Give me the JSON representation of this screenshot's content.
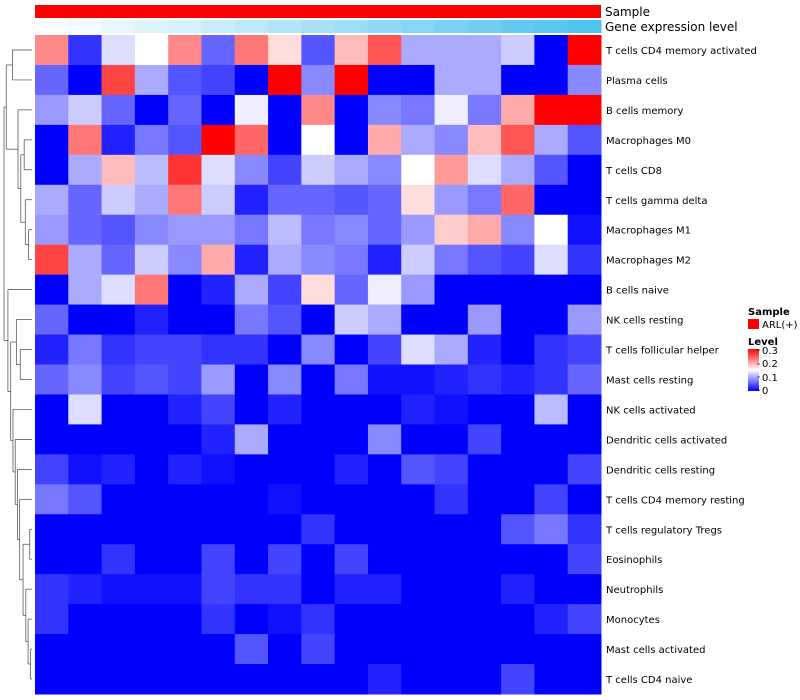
{
  "chart_data": {
    "type": "heatmap",
    "annotation_tracks": [
      {
        "name": "Sample",
        "kind": "categorical",
        "values": [
          "ARL(+)"
        ],
        "colors": {
          "ARL(+)": "#ff0000"
        }
      },
      {
        "name": "Gene expression level",
        "kind": "continuous",
        "from_color": "#ffffff",
        "to_color": "#4fc3f0"
      }
    ],
    "rows": [
      "T cells CD4 memory activated",
      "Plasma cells",
      "B cells memory",
      "Macrophages M0",
      "T cells CD8",
      "T cells gamma delta",
      "Macrophages M1",
      "Macrophages M2",
      "B cells naive",
      "NK cells resting",
      "T cells follicular helper",
      "Mast cells resting",
      "NK cells activated",
      "Dendritic cells activated",
      "Dendritic cells resting",
      "T cells CD4 memory resting",
      "T cells regulatory  Tregs",
      "Eosinophils",
      "Neutrophils",
      "Monocytes",
      "Mast cells activated",
      "T cells CD4 naive"
    ],
    "n_samples": 17,
    "values": [
      [
        0.22,
        0.03,
        0.13,
        0.15,
        0.22,
        0.06,
        0.23,
        0.17,
        0.05,
        0.19,
        0.25,
        0.1,
        0.1,
        0.1,
        0.12,
        0.0,
        0.3
      ],
      [
        0.06,
        0.0,
        0.26,
        0.1,
        0.05,
        0.04,
        0.0,
        0.3,
        0.08,
        0.3,
        0.0,
        0.0,
        0.1,
        0.1,
        0.0,
        0.0,
        0.08
      ],
      [
        0.09,
        0.12,
        0.06,
        0.0,
        0.06,
        0.0,
        0.14,
        0.0,
        0.22,
        0.0,
        0.08,
        0.07,
        0.14,
        0.07,
        0.2,
        0.3,
        0.3
      ],
      [
        0.0,
        0.23,
        0.02,
        0.07,
        0.05,
        0.3,
        0.24,
        0.0,
        0.15,
        0.0,
        0.2,
        0.1,
        0.08,
        0.19,
        0.25,
        0.1,
        0.05
      ],
      [
        0.0,
        0.1,
        0.19,
        0.11,
        0.27,
        0.13,
        0.08,
        0.04,
        0.12,
        0.1,
        0.08,
        0.15,
        0.21,
        0.13,
        0.1,
        0.05,
        0.0
      ],
      [
        0.1,
        0.06,
        0.12,
        0.1,
        0.23,
        0.12,
        0.02,
        0.06,
        0.06,
        0.05,
        0.06,
        0.17,
        0.09,
        0.07,
        0.24,
        0.0,
        0.0
      ],
      [
        0.09,
        0.06,
        0.05,
        0.08,
        0.09,
        0.09,
        0.07,
        0.11,
        0.07,
        0.08,
        0.06,
        0.09,
        0.18,
        0.2,
        0.08,
        0.15,
        0.01
      ],
      [
        0.26,
        0.1,
        0.06,
        0.12,
        0.08,
        0.2,
        0.02,
        0.1,
        0.08,
        0.07,
        0.02,
        0.12,
        0.07,
        0.05,
        0.04,
        0.13,
        0.03
      ],
      [
        0.0,
        0.1,
        0.13,
        0.23,
        0.0,
        0.02,
        0.1,
        0.04,
        0.17,
        0.06,
        0.14,
        0.09,
        0.0,
        0.0,
        0.0,
        0.0,
        0.0
      ],
      [
        0.06,
        0.0,
        0.0,
        0.02,
        0.0,
        0.0,
        0.07,
        0.05,
        0.0,
        0.12,
        0.1,
        0.0,
        0.0,
        0.09,
        0.0,
        0.0,
        0.09
      ],
      [
        0.02,
        0.07,
        0.03,
        0.04,
        0.04,
        0.03,
        0.03,
        0.0,
        0.08,
        0.0,
        0.04,
        0.13,
        0.1,
        0.02,
        0.0,
        0.03,
        0.04
      ],
      [
        0.06,
        0.08,
        0.04,
        0.05,
        0.04,
        0.09,
        0.0,
        0.08,
        0.0,
        0.07,
        0.01,
        0.01,
        0.02,
        0.03,
        0.02,
        0.03,
        0.06
      ],
      [
        0.0,
        0.13,
        0.0,
        0.0,
        0.02,
        0.04,
        0.0,
        0.02,
        0.0,
        0.0,
        0.0,
        0.02,
        0.01,
        0.0,
        0.0,
        0.11,
        0.0
      ],
      [
        0.0,
        0.0,
        0.0,
        0.0,
        0.0,
        0.02,
        0.1,
        0.0,
        0.0,
        0.0,
        0.08,
        0.0,
        0.0,
        0.04,
        0.0,
        0.0,
        0.0
      ],
      [
        0.04,
        0.01,
        0.02,
        0.0,
        0.02,
        0.01,
        0.0,
        0.0,
        0.0,
        0.02,
        0.0,
        0.05,
        0.04,
        0.0,
        0.0,
        0.0,
        0.04
      ],
      [
        0.07,
        0.05,
        0.0,
        0.0,
        0.0,
        0.0,
        0.0,
        0.01,
        0.0,
        0.0,
        0.0,
        0.0,
        0.03,
        0.0,
        0.0,
        0.04,
        0.0
      ],
      [
        0.0,
        0.0,
        0.0,
        0.0,
        0.0,
        0.0,
        0.0,
        0.0,
        0.03,
        0.0,
        0.0,
        0.0,
        0.0,
        0.0,
        0.05,
        0.07,
        0.03
      ],
      [
        0.0,
        0.0,
        0.03,
        0.0,
        0.0,
        0.04,
        0.0,
        0.04,
        0.0,
        0.04,
        0.0,
        0.0,
        0.0,
        0.0,
        0.0,
        0.0,
        0.04
      ],
      [
        0.03,
        0.02,
        0.01,
        0.01,
        0.01,
        0.04,
        0.03,
        0.03,
        0.0,
        0.02,
        0.02,
        0.0,
        0.0,
        0.0,
        0.02,
        0.0,
        0.0
      ],
      [
        0.03,
        0.0,
        0.0,
        0.0,
        0.0,
        0.03,
        0.0,
        0.01,
        0.03,
        0.0,
        0.0,
        0.0,
        0.0,
        0.0,
        0.0,
        0.02,
        0.04
      ],
      [
        0.0,
        0.0,
        0.0,
        0.0,
        0.0,
        0.0,
        0.05,
        0.0,
        0.04,
        0.0,
        0.0,
        0.0,
        0.0,
        0.0,
        0.0,
        0.0,
        0.0
      ],
      [
        0.0,
        0.0,
        0.0,
        0.0,
        0.0,
        0.0,
        0.0,
        0.0,
        0.0,
        0.0,
        0.02,
        0.0,
        0.0,
        0.0,
        0.04,
        0.0,
        0.0
      ]
    ],
    "expression_level": [
      0.0,
      0.06,
      0.13,
      0.19,
      0.25,
      0.31,
      0.38,
      0.44,
      0.5,
      0.56,
      0.63,
      0.69,
      0.75,
      0.81,
      0.88,
      0.94,
      1.0
    ],
    "color_scale": {
      "title": "Level",
      "min": 0,
      "max": 0.3,
      "low": "#0000ff",
      "mid": "#ffffff",
      "high": "#ff0000",
      "mid_value": 0.15
    },
    "legend": {
      "sample_title": "Sample",
      "sample_entries": [
        {
          "label": "ARL(+)",
          "color": "#ff0000"
        }
      ],
      "level_title": "Level",
      "level_ticks": [
        "0.3",
        "0.2",
        "0.1",
        "0"
      ],
      "placement": "right"
    },
    "row_dendrogram": true,
    "col_dendrogram": false
  }
}
